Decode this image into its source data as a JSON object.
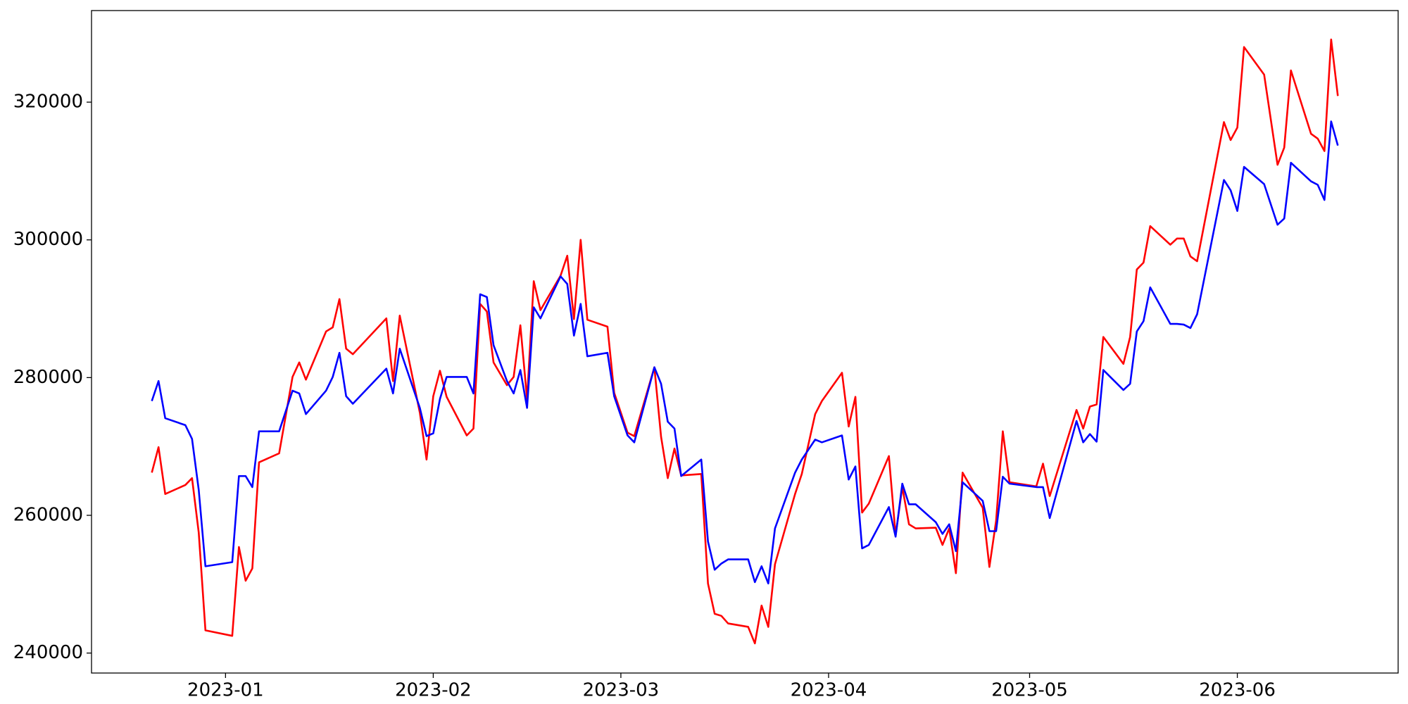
{
  "chart_data": {
    "type": "line",
    "x": [
      "2022-12-21",
      "2022-12-22",
      "2022-12-23",
      "2022-12-26",
      "2022-12-27",
      "2022-12-28",
      "2022-12-29",
      "2023-01-02",
      "2023-01-03",
      "2023-01-04",
      "2023-01-05",
      "2023-01-06",
      "2023-01-09",
      "2023-01-11",
      "2023-01-12",
      "2023-01-13",
      "2023-01-16",
      "2023-01-17",
      "2023-01-18",
      "2023-01-19",
      "2023-01-20",
      "2023-01-25",
      "2023-01-26",
      "2023-01-27",
      "2023-01-30",
      "2023-01-31",
      "2023-02-01",
      "2023-02-02",
      "2023-02-03",
      "2023-02-06",
      "2023-02-07",
      "2023-02-08",
      "2023-02-09",
      "2023-02-10",
      "2023-02-12",
      "2023-02-13",
      "2023-02-14",
      "2023-02-15",
      "2023-02-16",
      "2023-02-17",
      "2023-02-20",
      "2023-02-21",
      "2023-02-22",
      "2023-02-23",
      "2023-02-24",
      "2023-02-27",
      "2023-02-28",
      "2023-03-02",
      "2023-03-03",
      "2023-03-06",
      "2023-03-07",
      "2023-03-08",
      "2023-03-09",
      "2023-03-10",
      "2023-03-13",
      "2023-03-14",
      "2023-03-15",
      "2023-03-16",
      "2023-03-17",
      "2023-03-20",
      "2023-03-21",
      "2023-03-22",
      "2023-03-23",
      "2023-03-24",
      "2023-03-27",
      "2023-03-28",
      "2023-03-30",
      "2023-03-31",
      "2023-04-03",
      "2023-04-04",
      "2023-04-05",
      "2023-04-06",
      "2023-04-07",
      "2023-04-10",
      "2023-04-11",
      "2023-04-12",
      "2023-04-13",
      "2023-04-14",
      "2023-04-17",
      "2023-04-18",
      "2023-04-19",
      "2023-04-20",
      "2023-04-21",
      "2023-04-24",
      "2023-04-25",
      "2023-04-26",
      "2023-04-27",
      "2023-04-28",
      "2023-05-02",
      "2023-05-03",
      "2023-05-04",
      "2023-05-08",
      "2023-05-09",
      "2023-05-10",
      "2023-05-11",
      "2023-05-12",
      "2023-05-15",
      "2023-05-16",
      "2023-05-17",
      "2023-05-18",
      "2023-05-19",
      "2023-05-22",
      "2023-05-23",
      "2023-05-24",
      "2023-05-25",
      "2023-05-26",
      "2023-05-30",
      "2023-05-31",
      "2023-06-01",
      "2023-06-02",
      "2023-06-05",
      "2023-06-07",
      "2023-06-08",
      "2023-06-09",
      "2023-06-12",
      "2023-06-13",
      "2023-06-14",
      "2023-06-15",
      "2023-06-16"
    ],
    "series": [
      {
        "color": "#ff0000",
        "values": [
          266200,
          269900,
          263100,
          264400,
          265400,
          257500,
          243300,
          242500,
          255400,
          250500,
          252300,
          267700,
          269000,
          280100,
          282200,
          279700,
          286700,
          287300,
          291400,
          284200,
          283400,
          288600,
          279500,
          289000,
          274900,
          268100,
          277300,
          281000,
          277200,
          271600,
          272600,
          290700,
          289600,
          282200,
          278900,
          280100,
          287600,
          276900,
          294000,
          289800,
          294800,
          297700,
          288500,
          300000,
          288400,
          287400,
          277800,
          272000,
          271500,
          281500,
          271400,
          265400,
          269700,
          265800,
          266000,
          250100,
          245700,
          245400,
          244300,
          243800,
          241400,
          246900,
          243800,
          252900,
          263100,
          266000,
          274700,
          276600,
          280700,
          272900,
          277200,
          260400,
          261700,
          268600,
          257100,
          264100,
          258700,
          258100,
          258200,
          255700,
          258100,
          251600,
          266200,
          261100,
          252500,
          259200,
          272200,
          264800,
          264200,
          267500,
          262800,
          275300,
          272600,
          275800,
          276100,
          285900,
          282000,
          285900,
          295700,
          296700,
          302000,
          299300,
          300200,
          300200,
          297600,
          296900,
          317100,
          314500,
          316300,
          328000,
          324000,
          310900,
          313400,
          324600,
          315400,
          314700,
          312900,
          329100,
          320900
        ]
      },
      {
        "color": "#0000ff",
        "values": [
          276600,
          279500,
          274100,
          273100,
          271100,
          263700,
          252600,
          253200,
          265700,
          265700,
          264100,
          272200,
          272200,
          278100,
          277700,
          274700,
          278100,
          280100,
          283600,
          277300,
          276200,
          281300,
          277700,
          284200,
          275600,
          271500,
          271900,
          276900,
          280100,
          280100,
          277700,
          292100,
          291700,
          284700,
          279500,
          277700,
          281100,
          275600,
          290200,
          288600,
          294700,
          293600,
          286100,
          290700,
          283100,
          283600,
          277300,
          271600,
          270600,
          281500,
          279100,
          273600,
          272600,
          265700,
          268100,
          256200,
          252100,
          253000,
          253600,
          253600,
          250300,
          252600,
          250100,
          258100,
          266200,
          268100,
          271000,
          270600,
          271600,
          265200,
          267100,
          255200,
          255700,
          261200,
          256900,
          264600,
          261600,
          261600,
          259000,
          257300,
          258700,
          254800,
          264800,
          262100,
          257700,
          257700,
          265600,
          264600,
          264100,
          264100,
          259600,
          273700,
          270600,
          271800,
          270700,
          281100,
          278200,
          279100,
          286700,
          288200,
          293100,
          287800,
          287800,
          287700,
          287200,
          289200,
          308700,
          307200,
          304200,
          310600,
          308100,
          302200,
          303100,
          311200,
          308500,
          308000,
          305800,
          317200,
          313700
        ]
      }
    ],
    "xlim": [
      "2022-12-12",
      "2023-06-25"
    ],
    "xticks": [
      {
        "value": "2023-01-01",
        "label": "2023-01"
      },
      {
        "value": "2023-02-01",
        "label": "2023-02"
      },
      {
        "value": "2023-03-01",
        "label": "2023-03"
      },
      {
        "value": "2023-04-01",
        "label": "2023-04"
      },
      {
        "value": "2023-05-01",
        "label": "2023-05"
      },
      {
        "value": "2023-06-01",
        "label": "2023-06"
      }
    ],
    "ylim": [
      237100,
      333300
    ],
    "yticks": [
      240000,
      260000,
      280000,
      300000,
      320000
    ],
    "grid": false
  }
}
